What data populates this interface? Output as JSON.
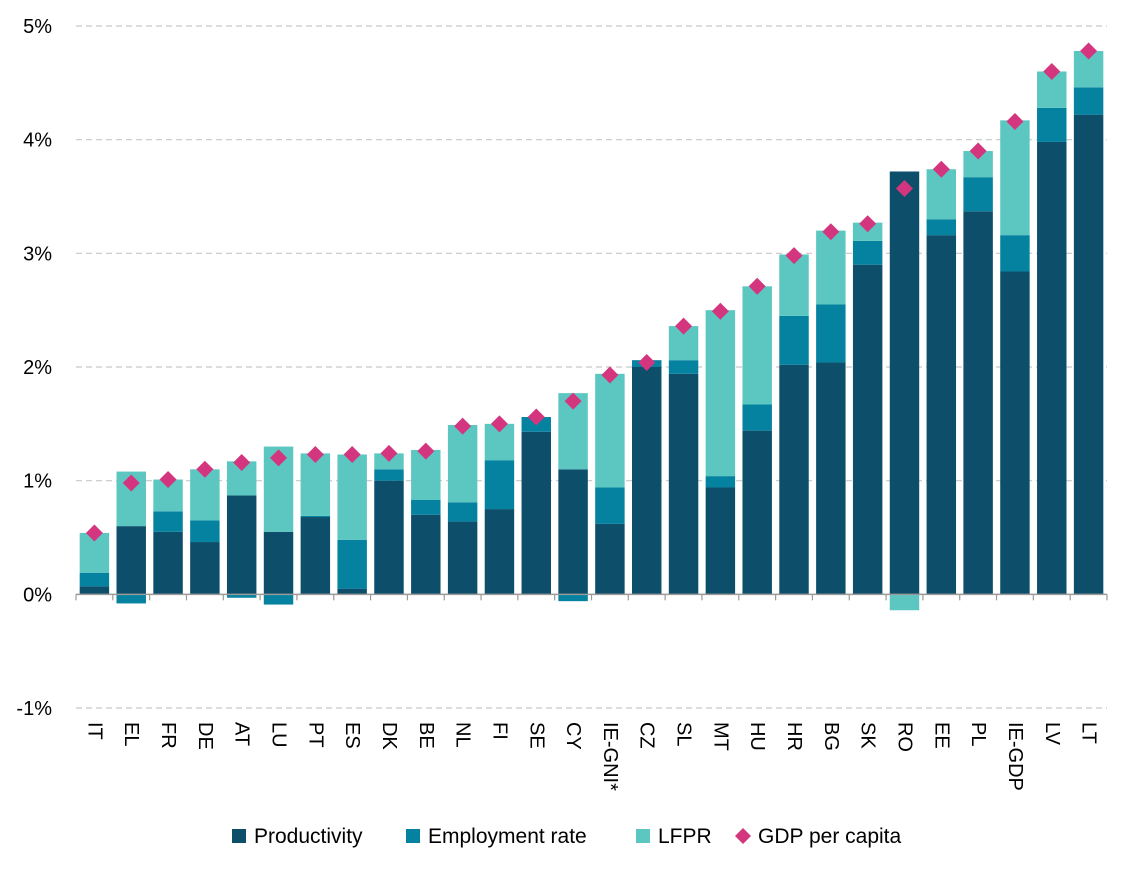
{
  "chart_data": {
    "type": "bar",
    "stacked": true,
    "title": "",
    "xlabel": "",
    "ylabel": "",
    "ylim": [
      -1,
      5
    ],
    "yticks": [
      "-1%",
      "0%",
      "1%",
      "2%",
      "3%",
      "4%",
      "5%"
    ],
    "grid": true,
    "legend_position": "bottom",
    "categories": [
      "IT",
      "EL",
      "FR",
      "DE",
      "AT",
      "LU",
      "PT",
      "ES",
      "DK",
      "BE",
      "NL",
      "FI",
      "SE",
      "CY",
      "IE-GNI*",
      "CZ",
      "SL",
      "MT",
      "HU",
      "HR",
      "BG",
      "SK",
      "RO",
      "EE",
      "PL",
      "IE-GDP",
      "LV",
      "LT"
    ],
    "series": [
      {
        "name": "Productivity",
        "kind": "bar",
        "color": "#0d4f6b",
        "values": [
          0.07,
          0.6,
          0.55,
          0.46,
          0.87,
          0.55,
          0.68,
          0.05,
          1.0,
          0.7,
          0.64,
          0.75,
          1.43,
          1.1,
          0.62,
          2.0,
          1.94,
          0.94,
          1.44,
          2.02,
          2.04,
          2.9,
          3.72,
          3.16,
          3.37,
          2.84,
          3.98,
          4.22
        ]
      },
      {
        "name": "Employment rate",
        "kind": "bar",
        "color": "#0582a0",
        "values": [
          0.12,
          -0.08,
          0.18,
          0.19,
          -0.03,
          -0.09,
          0.01,
          0.43,
          0.1,
          0.13,
          0.17,
          0.43,
          0.13,
          -0.06,
          0.32,
          0.06,
          0.12,
          0.1,
          0.23,
          0.43,
          0.51,
          0.21,
          0.0,
          0.14,
          0.3,
          0.32,
          0.3,
          0.24
        ]
      },
      {
        "name": "LFPR",
        "kind": "bar",
        "color": "#5cc7c0",
        "values": [
          0.35,
          0.48,
          0.28,
          0.45,
          0.3,
          0.75,
          0.55,
          0.75,
          0.14,
          0.44,
          0.68,
          0.32,
          0.0,
          0.67,
          1.0,
          0.0,
          0.3,
          1.46,
          1.04,
          0.54,
          0.65,
          0.16,
          -0.14,
          0.44,
          0.23,
          1.01,
          0.32,
          0.32
        ]
      },
      {
        "name": "GDP per capita",
        "kind": "marker",
        "color": "#d4357f",
        "values": [
          0.54,
          0.98,
          1.01,
          1.1,
          1.16,
          1.2,
          1.23,
          1.23,
          1.24,
          1.26,
          1.48,
          1.5,
          1.56,
          1.7,
          1.93,
          2.04,
          2.36,
          2.49,
          2.71,
          2.98,
          3.19,
          3.26,
          3.57,
          3.74,
          3.9,
          4.16,
          4.6,
          4.78
        ]
      }
    ]
  }
}
